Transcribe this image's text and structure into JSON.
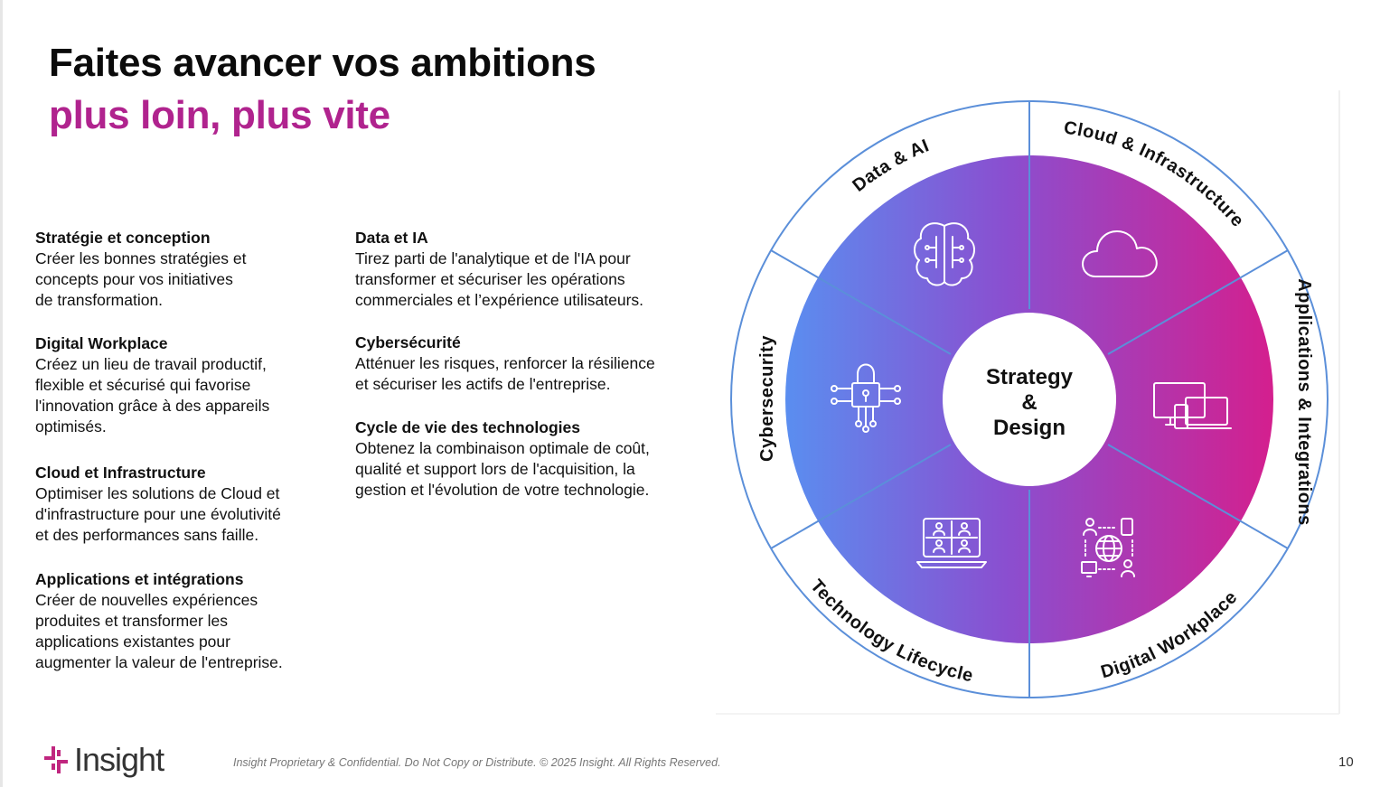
{
  "title": {
    "line1": "Faites avancer vos ambitions",
    "line2": "plus loin, plus vite"
  },
  "sections_left": [
    {
      "heading": "Stratégie et conception",
      "text": "Créer les bonnes stratégies et\nconcepts pour vos initiatives\nde transformation."
    },
    {
      "heading": "Digital Workplace",
      "text": "Créez un lieu de travail productif,\nflexible et sécurisé qui favorise\nl'innovation grâce à des appareils\noptimisés."
    },
    {
      "heading": "Cloud et Infrastructure",
      "text": "Optimiser les solutions de Cloud et\nd'infrastructure pour une évolutivité\net des performances sans faille."
    },
    {
      "heading": "Applications et intégrations",
      "text": "Créer de nouvelles expériences\nproduites et transformer les\napplications existantes pour\naugmenter la valeur de l'entreprise."
    }
  ],
  "sections_right": [
    {
      "heading": "Data et IA",
      "text": "Tirez parti de l'analytique et de l'IA pour\ntransformer et sécuriser les opérations\ncommerciales et l’expérience utilisateurs."
    },
    {
      "heading": "Cybersécurité",
      "text": "Atténuer les risques, renforcer la résilience\net sécuriser les actifs de l'entreprise."
    },
    {
      "heading": "Cycle de vie des technologies",
      "text": "Obtenez la combinaison optimale de coût,\nqualité et support lors de l'acquisition, la\ngestion et l'évolution de votre technologie."
    }
  ],
  "wheel": {
    "center": {
      "line1": "Strategy",
      "line2": "&",
      "line3": "Design"
    },
    "segments": [
      {
        "label": "Data & AI",
        "icon": "brain-circuit-icon"
      },
      {
        "label": "Cloud & Infrastructure",
        "icon": "cloud-icon"
      },
      {
        "label": "Applications & Integrations",
        "icon": "devices-icon"
      },
      {
        "label": "Digital Workplace",
        "icon": "connected-people-globe-icon"
      },
      {
        "label": "Technology Lifecycle",
        "icon": "laptop-video-call-icon"
      },
      {
        "label": "Cybersecurity",
        "icon": "lock-circuit-icon"
      }
    ],
    "colors": {
      "gradient_start": "#5a8ef0",
      "gradient_mid": "#8a4fd0",
      "gradient_end": "#d41f8e",
      "ring_stroke": "#5b8fd9"
    }
  },
  "footer": {
    "logo_text": "Insight",
    "logo_color": "#c0267f",
    "legal": "Insight Proprietary & Confidential. Do Not Copy or Distribute. © 2025 Insight. All Rights Reserved.",
    "page_number": "10"
  }
}
